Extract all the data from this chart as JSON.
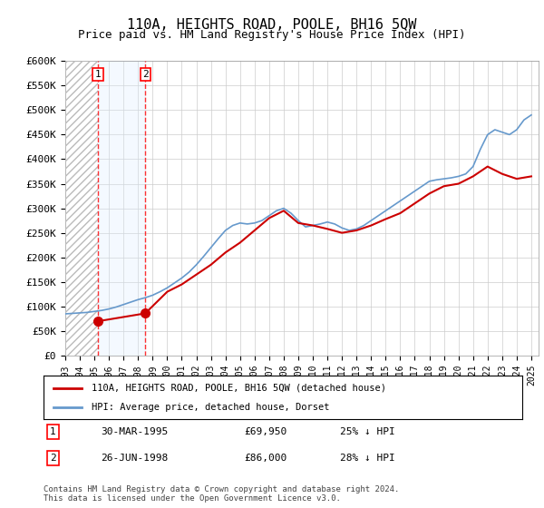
{
  "title": "110A, HEIGHTS ROAD, POOLE, BH16 5QW",
  "subtitle": "Price paid vs. HM Land Registry's House Price Index (HPI)",
  "legend_line1": "110A, HEIGHTS ROAD, POOLE, BH16 5QW (detached house)",
  "legend_line2": "HPI: Average price, detached house, Dorset",
  "footnote": "Contains HM Land Registry data © Crown copyright and database right 2024.\nThis data is licensed under the Open Government Licence v3.0.",
  "sale1_label": "1",
  "sale1_date": "30-MAR-1995",
  "sale1_price": "£69,950",
  "sale1_hpi": "25% ↓ HPI",
  "sale1_year": 1995.24,
  "sale1_value": 69950,
  "sale2_label": "2",
  "sale2_date": "26-JUN-1998",
  "sale2_price": "£86,000",
  "sale2_hpi": "28% ↓ HPI",
  "sale2_year": 1998.49,
  "sale2_value": 86000,
  "ylim": [
    0,
    600000
  ],
  "xlim": [
    1993.0,
    2025.5
  ],
  "yticks": [
    0,
    50000,
    100000,
    150000,
    200000,
    250000,
    300000,
    350000,
    400000,
    450000,
    500000,
    550000,
    600000
  ],
  "ytick_labels": [
    "£0",
    "£50K",
    "£100K",
    "£150K",
    "£200K",
    "£250K",
    "£300K",
    "£350K",
    "£400K",
    "£450K",
    "£500K",
    "£550K",
    "£600K"
  ],
  "xticks": [
    1993,
    1994,
    1995,
    1996,
    1997,
    1998,
    1999,
    2000,
    2001,
    2002,
    2003,
    2004,
    2005,
    2006,
    2007,
    2008,
    2009,
    2010,
    2011,
    2012,
    2013,
    2014,
    2015,
    2016,
    2017,
    2018,
    2019,
    2020,
    2021,
    2022,
    2023,
    2024,
    2025
  ],
  "line_red_color": "#cc0000",
  "line_blue_color": "#6699cc",
  "hatch_color": "#cccccc",
  "shade_color": "#ddeeff",
  "grid_color": "#cccccc",
  "background_color": "#ffffff",
  "hpi_years": [
    1993.0,
    1993.5,
    1994.0,
    1994.5,
    1995.0,
    1995.5,
    1996.0,
    1996.5,
    1997.0,
    1997.5,
    1998.0,
    1998.5,
    1999.0,
    1999.5,
    2000.0,
    2000.5,
    2001.0,
    2001.5,
    2002.0,
    2002.5,
    2003.0,
    2003.5,
    2004.0,
    2004.5,
    2005.0,
    2005.5,
    2006.0,
    2006.5,
    2007.0,
    2007.5,
    2008.0,
    2008.5,
    2009.0,
    2009.5,
    2010.0,
    2010.5,
    2011.0,
    2011.5,
    2012.0,
    2012.5,
    2013.0,
    2013.5,
    2014.0,
    2014.5,
    2015.0,
    2015.5,
    2016.0,
    2016.5,
    2017.0,
    2017.5,
    2018.0,
    2018.5,
    2019.0,
    2019.5,
    2020.0,
    2020.5,
    2021.0,
    2021.5,
    2022.0,
    2022.5,
    2023.0,
    2023.5,
    2024.0,
    2024.5,
    2025.0
  ],
  "hpi_values": [
    85000,
    86000,
    87000,
    88000,
    90000,
    92000,
    95000,
    99000,
    104000,
    109000,
    114000,
    118000,
    123000,
    130000,
    138000,
    148000,
    158000,
    170000,
    185000,
    202000,
    220000,
    238000,
    255000,
    265000,
    270000,
    268000,
    270000,
    275000,
    285000,
    295000,
    300000,
    290000,
    275000,
    262000,
    265000,
    268000,
    272000,
    268000,
    260000,
    255000,
    258000,
    265000,
    275000,
    285000,
    295000,
    305000,
    315000,
    325000,
    335000,
    345000,
    355000,
    358000,
    360000,
    362000,
    365000,
    370000,
    385000,
    420000,
    450000,
    460000,
    455000,
    450000,
    460000,
    480000,
    490000
  ],
  "price_years": [
    1995.24,
    1998.49,
    2000.0,
    2001.0,
    2002.0,
    2003.0,
    2004.0,
    2005.0,
    2006.0,
    2007.0,
    2008.0,
    2009.0,
    2010.0,
    2011.0,
    2012.0,
    2013.0,
    2014.0,
    2015.0,
    2016.0,
    2017.0,
    2018.0,
    2019.0,
    2020.0,
    2021.0,
    2022.0,
    2023.0,
    2024.0,
    2025.0
  ],
  "price_values": [
    69950,
    86000,
    130000,
    145000,
    165000,
    185000,
    210000,
    230000,
    255000,
    280000,
    295000,
    270000,
    265000,
    258000,
    250000,
    255000,
    265000,
    278000,
    290000,
    310000,
    330000,
    345000,
    350000,
    365000,
    385000,
    370000,
    360000,
    365000
  ]
}
